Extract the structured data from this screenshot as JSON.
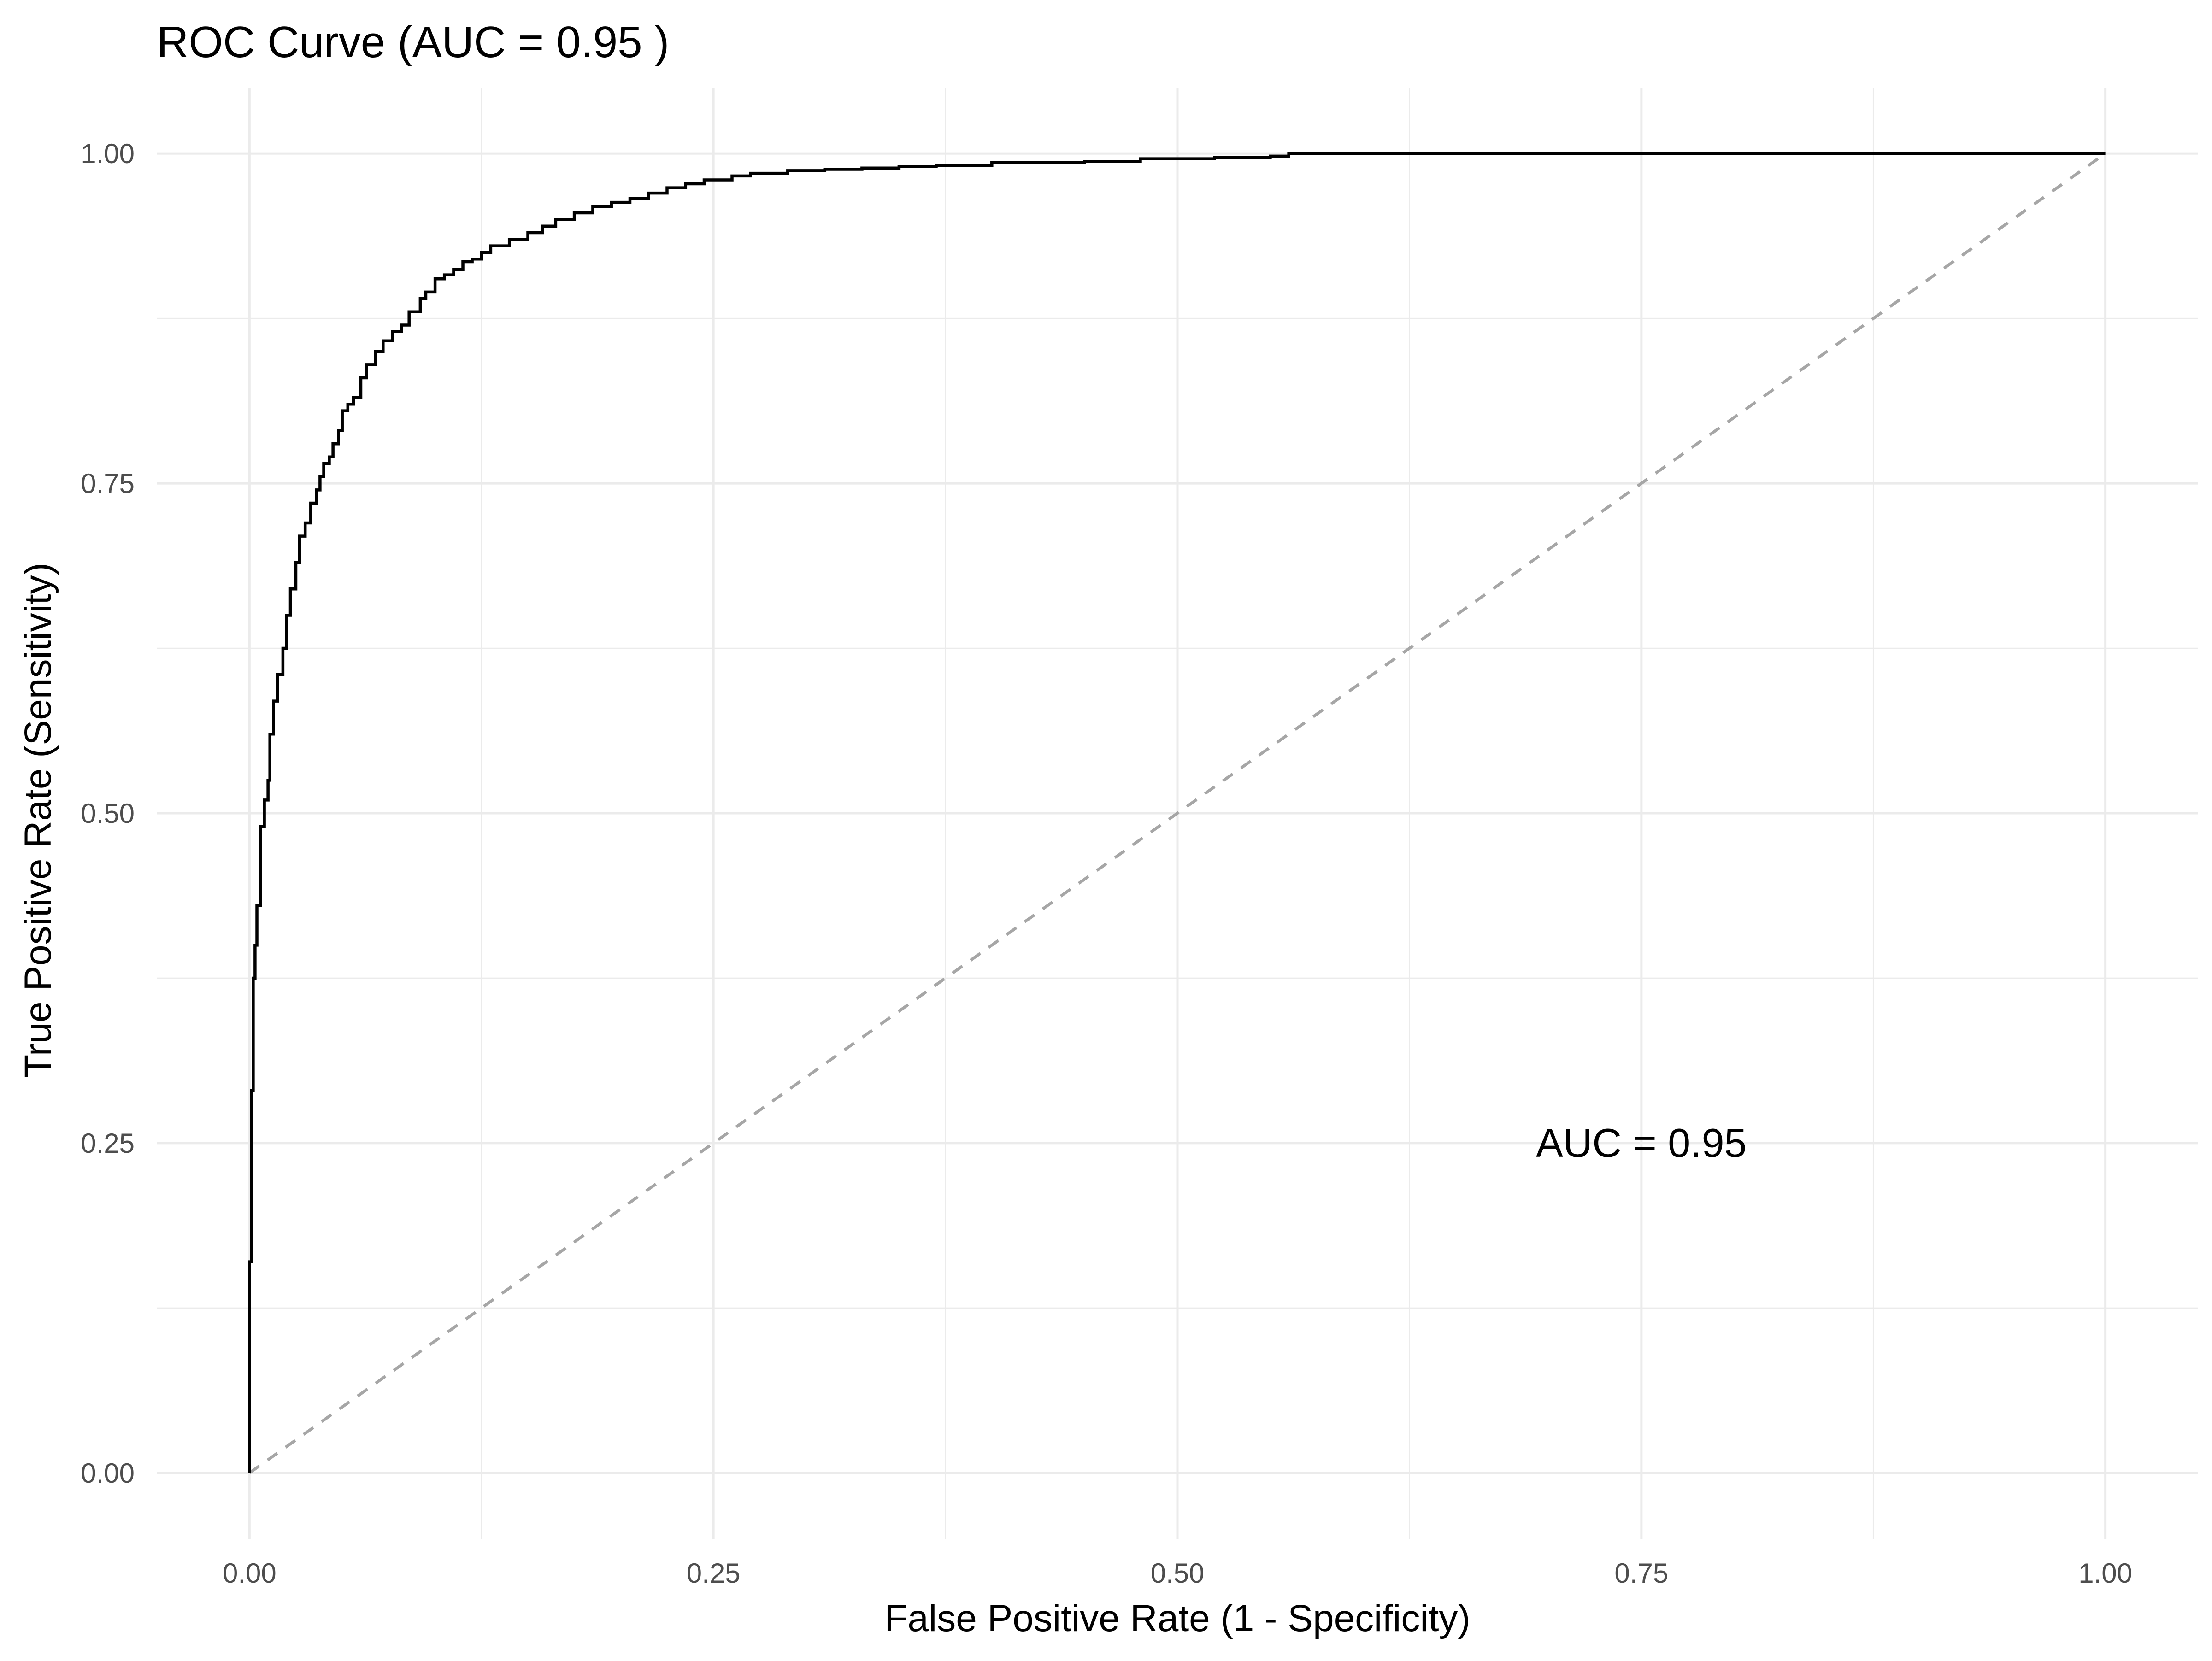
{
  "chart_data": {
    "type": "line",
    "title": "ROC Curve (AUC = 0.95 )",
    "xlabel": "False Positive Rate (1 - Specificity)",
    "ylabel": "True Positive Rate (Sensitivity)",
    "xlim": [
      -0.05,
      1.05
    ],
    "ylim": [
      -0.05,
      1.05
    ],
    "x_ticks": [
      0,
      0.25,
      0.5,
      0.75,
      1
    ],
    "x_tick_labels": [
      "0.00",
      "0.25",
      "0.50",
      "0.75",
      "1.00"
    ],
    "y_ticks": [
      0,
      0.25,
      0.5,
      0.75,
      1
    ],
    "y_tick_labels": [
      "0.00",
      "0.25",
      "0.50",
      "0.75",
      "1.00"
    ],
    "grid": true,
    "legend": "none",
    "annotation": {
      "text": "AUC = 0.95",
      "x": 0.75,
      "y": 0.25
    },
    "series": [
      {
        "role": "roc",
        "color": "#000000",
        "style": "step",
        "x": [
          0.0,
          0.0,
          0.001,
          0.002,
          0.003,
          0.004,
          0.006,
          0.008,
          0.01,
          0.011,
          0.013,
          0.015,
          0.018,
          0.02,
          0.022,
          0.025,
          0.027,
          0.03,
          0.033,
          0.036,
          0.038,
          0.04,
          0.043,
          0.045,
          0.048,
          0.05,
          0.053,
          0.056,
          0.06,
          0.063,
          0.068,
          0.072,
          0.077,
          0.082,
          0.086,
          0.092,
          0.095,
          0.1,
          0.105,
          0.11,
          0.115,
          0.12,
          0.125,
          0.13,
          0.14,
          0.15,
          0.158,
          0.165,
          0.175,
          0.185,
          0.195,
          0.205,
          0.215,
          0.225,
          0.235,
          0.245,
          0.26,
          0.27,
          0.29,
          0.31,
          0.33,
          0.35,
          0.37,
          0.4,
          0.45,
          0.48,
          0.52,
          0.55,
          0.56,
          0.59,
          0.62,
          0.7,
          0.8,
          0.9,
          1.0
        ],
        "y": [
          0.0,
          0.16,
          0.29,
          0.375,
          0.4,
          0.43,
          0.49,
          0.51,
          0.525,
          0.56,
          0.585,
          0.605,
          0.625,
          0.65,
          0.67,
          0.69,
          0.71,
          0.72,
          0.735,
          0.745,
          0.755,
          0.765,
          0.77,
          0.78,
          0.79,
          0.805,
          0.81,
          0.815,
          0.83,
          0.84,
          0.85,
          0.858,
          0.865,
          0.87,
          0.88,
          0.89,
          0.895,
          0.905,
          0.908,
          0.912,
          0.918,
          0.92,
          0.925,
          0.93,
          0.935,
          0.94,
          0.945,
          0.95,
          0.955,
          0.96,
          0.963,
          0.966,
          0.97,
          0.974,
          0.977,
          0.98,
          0.983,
          0.985,
          0.987,
          0.988,
          0.989,
          0.99,
          0.991,
          0.993,
          0.994,
          0.996,
          0.997,
          0.998,
          1.0,
          1.0,
          1.0,
          1.0,
          1.0,
          1.0,
          1.0
        ]
      },
      {
        "role": "reference",
        "color": "#a6a6a6",
        "style": "dashed",
        "x": [
          0,
          1
        ],
        "y": [
          0,
          1
        ]
      }
    ]
  }
}
